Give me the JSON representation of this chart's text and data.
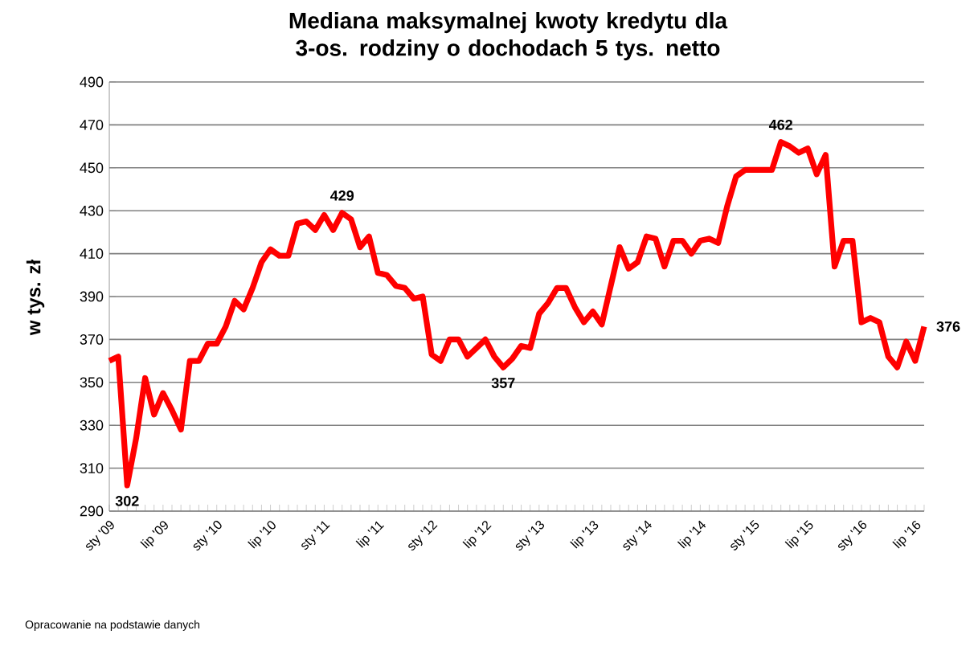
{
  "chart_data": {
    "type": "line",
    "title": "Mediana maksymalnej kwoty kredytu dla 3-os. rodziny o dochodach 5 tys. netto",
    "ylabel": "w tys. zł",
    "annotations": [
      "Opracowanie na podstawie danych"
    ],
    "categories": [
      "sty '09",
      null,
      null,
      null,
      null,
      null,
      "lip '09",
      null,
      null,
      null,
      null,
      null,
      "sty '10",
      null,
      null,
      null,
      null,
      null,
      "lip '10",
      null,
      null,
      null,
      null,
      null,
      "sty '11",
      null,
      null,
      null,
      null,
      null,
      "lip '11",
      null,
      null,
      null,
      null,
      null,
      "sty '12",
      null,
      null,
      null,
      null,
      null,
      "lip '12",
      null,
      null,
      null,
      null,
      null,
      "sty '13",
      null,
      null,
      null,
      null,
      null,
      "lip '13",
      null,
      null,
      null,
      null,
      null,
      "sty '14",
      null,
      null,
      null,
      null,
      null,
      "lip '14",
      null,
      null,
      null,
      null,
      null,
      "sty '15",
      null,
      null,
      null,
      null,
      null,
      "lip '15",
      null,
      null,
      null,
      null,
      null,
      "sty '16",
      null,
      null,
      null,
      null,
      null,
      "lip '16",
      null
    ],
    "series": [
      {
        "color": "#ff0000",
        "values": [
          360,
          362,
          302,
          324,
          352,
          335,
          345,
          337,
          328,
          360,
          360,
          368,
          368,
          376,
          388,
          384,
          394,
          406,
          412,
          409,
          409,
          424,
          425,
          421,
          428,
          421,
          429,
          426,
          413,
          418,
          401,
          400,
          395,
          394,
          389,
          390,
          363,
          360,
          370,
          370,
          362,
          366,
          370,
          362,
          357,
          361,
          367,
          366,
          382,
          387,
          394,
          394,
          385,
          378,
          383,
          377,
          395,
          413,
          403,
          406,
          418,
          417,
          404,
          416,
          416,
          410,
          416,
          417,
          415,
          432,
          446,
          449,
          449,
          449,
          449,
          462,
          460,
          457,
          459,
          447,
          456,
          404,
          416,
          416,
          378,
          380,
          378,
          362,
          357,
          369,
          360,
          376
        ],
        "value_labels": [
          null,
          null,
          "302",
          null,
          null,
          null,
          null,
          null,
          null,
          null,
          null,
          null,
          null,
          null,
          null,
          null,
          null,
          null,
          null,
          null,
          null,
          null,
          null,
          null,
          null,
          null,
          "429",
          null,
          null,
          null,
          null,
          null,
          null,
          null,
          null,
          null,
          null,
          null,
          null,
          null,
          null,
          null,
          null,
          null,
          "357",
          null,
          null,
          null,
          null,
          null,
          null,
          null,
          null,
          null,
          null,
          null,
          null,
          null,
          null,
          null,
          null,
          null,
          null,
          null,
          null,
          null,
          null,
          null,
          null,
          null,
          null,
          null,
          null,
          null,
          null,
          "462",
          null,
          null,
          null,
          null,
          null,
          null,
          null,
          null,
          null,
          null,
          null,
          null,
          null,
          null,
          null,
          "376"
        ]
      }
    ],
    "ylim": [
      290,
      490
    ],
    "yticks": [
      290,
      310,
      330,
      350,
      370,
      390,
      410,
      430,
      450,
      470,
      490
    ],
    "grid": "y",
    "marker": "none",
    "line_style": "solid"
  }
}
